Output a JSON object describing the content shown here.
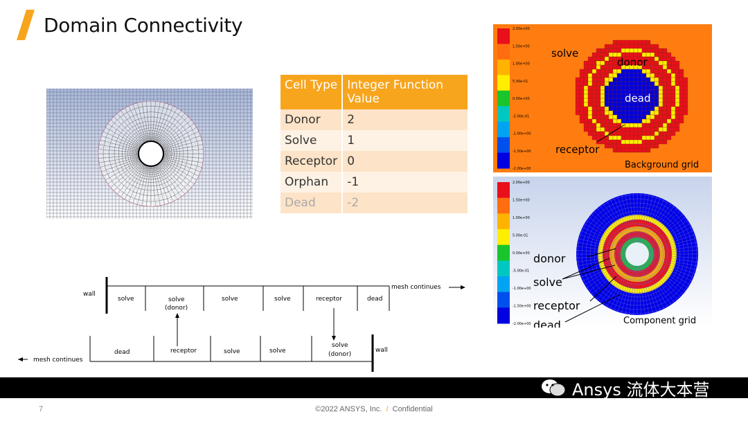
{
  "slide": {
    "title": "Domain Connectivity",
    "page_number": "7",
    "copyright": "©2022 ANSYS, Inc.",
    "separator": "/",
    "confidential": "Confidential",
    "watermark": "Ansys 流体大本营",
    "accent_color": "#f7a51d"
  },
  "table": {
    "headers": [
      "Cell Type",
      "Integer Function Value"
    ],
    "rows": [
      {
        "type": "Donor",
        "value": "2"
      },
      {
        "type": "Solve",
        "value": "1"
      },
      {
        "type": "Receptor",
        "value": "0"
      },
      {
        "type": "Orphan",
        "value": "-1"
      },
      {
        "type": "Dead",
        "value": "-2"
      }
    ]
  },
  "background_plot": {
    "scale_labels": [
      "2.00e+00",
      "1.50e+00",
      "1.00e+00",
      "5.00e-01",
      "0.00e+00",
      "-5.00e-01",
      "-1.00e+00",
      "-1.50e+00",
      "-2.00e+00"
    ],
    "scale_colors": [
      "#e8101a",
      "#ff6d10",
      "#ffb300",
      "#ffee00",
      "#19c52b",
      "#00c8c0",
      "#00a4f0",
      "#0050ee",
      "#0000e0"
    ],
    "label_solve": "solve",
    "label_donor": "donor",
    "label_dead": "dead",
    "label_receptor": "receptor",
    "caption": "Background grid"
  },
  "component_plot": {
    "scale_labels": [
      "2.00e+00",
      "1.50e+00",
      "1.00e+00",
      "5.00e-01",
      "0.00e+00",
      "-5.00e-01",
      "-1.00e+00",
      "-1.50e+00",
      "-2.00e+00"
    ],
    "label_donor": "donor",
    "label_solve": "solve",
    "label_receptor": "receptor",
    "label_dead": "dead",
    "caption": "Component grid"
  },
  "diagram_1d": {
    "top_wall": "wall",
    "top_cells": [
      "solve",
      "solve",
      "(donor)",
      "solve",
      "solve",
      "receptor",
      "dead"
    ],
    "top_continues": "mesh continues",
    "bottom_continues": "mesh continues",
    "bottom_cells": [
      "dead",
      "receptor",
      "solve",
      "solve",
      "solve",
      "(donor)"
    ],
    "bottom_wall": "wall"
  }
}
